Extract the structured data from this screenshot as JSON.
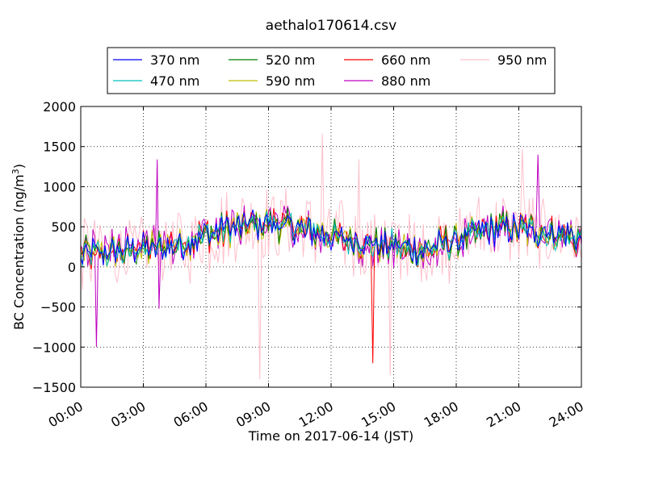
{
  "chart_data": {
    "type": "line",
    "title": "aethalo170614.csv",
    "xlabel": "Time on 2017-06-14 (JST)",
    "ylabel_main": "BC Concentration (ng/m",
    "ylabel_sup": "3",
    "ylabel_tail": ")",
    "xlim": [
      "00:00",
      "24:00"
    ],
    "ylim": [
      -1500,
      2000
    ],
    "grid": true,
    "legend_position": "top-center",
    "x_ticks": [
      "00:00",
      "03:00",
      "06:00",
      "09:00",
      "12:00",
      "15:00",
      "18:00",
      "21:00",
      "24:00"
    ],
    "y_ticks": [
      -1500,
      -1000,
      -500,
      0,
      500,
      1000,
      1500,
      2000
    ],
    "y_tick_labels": [
      "−1500",
      "−1000",
      "−500",
      "0",
      "500",
      "1000",
      "1500",
      "2000"
    ],
    "sample_interval_minutes": 5,
    "series": [
      {
        "name": "370 nm",
        "color": "#0000ff",
        "noise": 90,
        "order": 0
      },
      {
        "name": "470 nm",
        "color": "#00bfbf",
        "noise": 100,
        "order": 1
      },
      {
        "name": "520 nm",
        "color": "#008000",
        "noise": 110,
        "order": 2
      },
      {
        "name": "590 nm",
        "color": "#bfbf00",
        "noise": 120,
        "order": 3
      },
      {
        "name": "660 nm",
        "color": "#ff0000",
        "noise": 130,
        "order": 4
      },
      {
        "name": "880 nm",
        "color": "#bf00bf",
        "noise": 200,
        "order": 5
      },
      {
        "name": "950 nm",
        "color": "#ffc0cb",
        "noise": 420,
        "order": 6
      }
    ],
    "baseline_profile": [
      {
        "x": "00:00",
        "y": 150
      },
      {
        "x": "03:00",
        "y": 220
      },
      {
        "x": "05:00",
        "y": 300
      },
      {
        "x": "06:00",
        "y": 400
      },
      {
        "x": "07:30",
        "y": 500
      },
      {
        "x": "09:00",
        "y": 550
      },
      {
        "x": "10:30",
        "y": 480
      },
      {
        "x": "12:00",
        "y": 380
      },
      {
        "x": "13:30",
        "y": 300
      },
      {
        "x": "15:00",
        "y": 250
      },
      {
        "x": "16:30",
        "y": 200
      },
      {
        "x": "18:00",
        "y": 350
      },
      {
        "x": "20:00",
        "y": 480
      },
      {
        "x": "22:00",
        "y": 450
      },
      {
        "x": "24:00",
        "y": 350
      }
    ],
    "notable_spikes": [
      {
        "series": "880 nm",
        "x": "00:45",
        "y": -1000
      },
      {
        "series": "880 nm",
        "x": "03:40",
        "y": 1340
      },
      {
        "series": "880 nm",
        "x": "03:45",
        "y": -520
      },
      {
        "series": "950 nm",
        "x": "08:35",
        "y": -1400
      },
      {
        "series": "950 nm",
        "x": "11:35",
        "y": 1660
      },
      {
        "series": "950 nm",
        "x": "13:20",
        "y": 1340
      },
      {
        "series": "660 nm",
        "x": "14:00",
        "y": -1200
      },
      {
        "series": "950 nm",
        "x": "14:50",
        "y": -1350
      },
      {
        "series": "950 nm",
        "x": "21:10",
        "y": 1470
      },
      {
        "series": "880 nm",
        "x": "21:55",
        "y": 1400
      }
    ]
  }
}
